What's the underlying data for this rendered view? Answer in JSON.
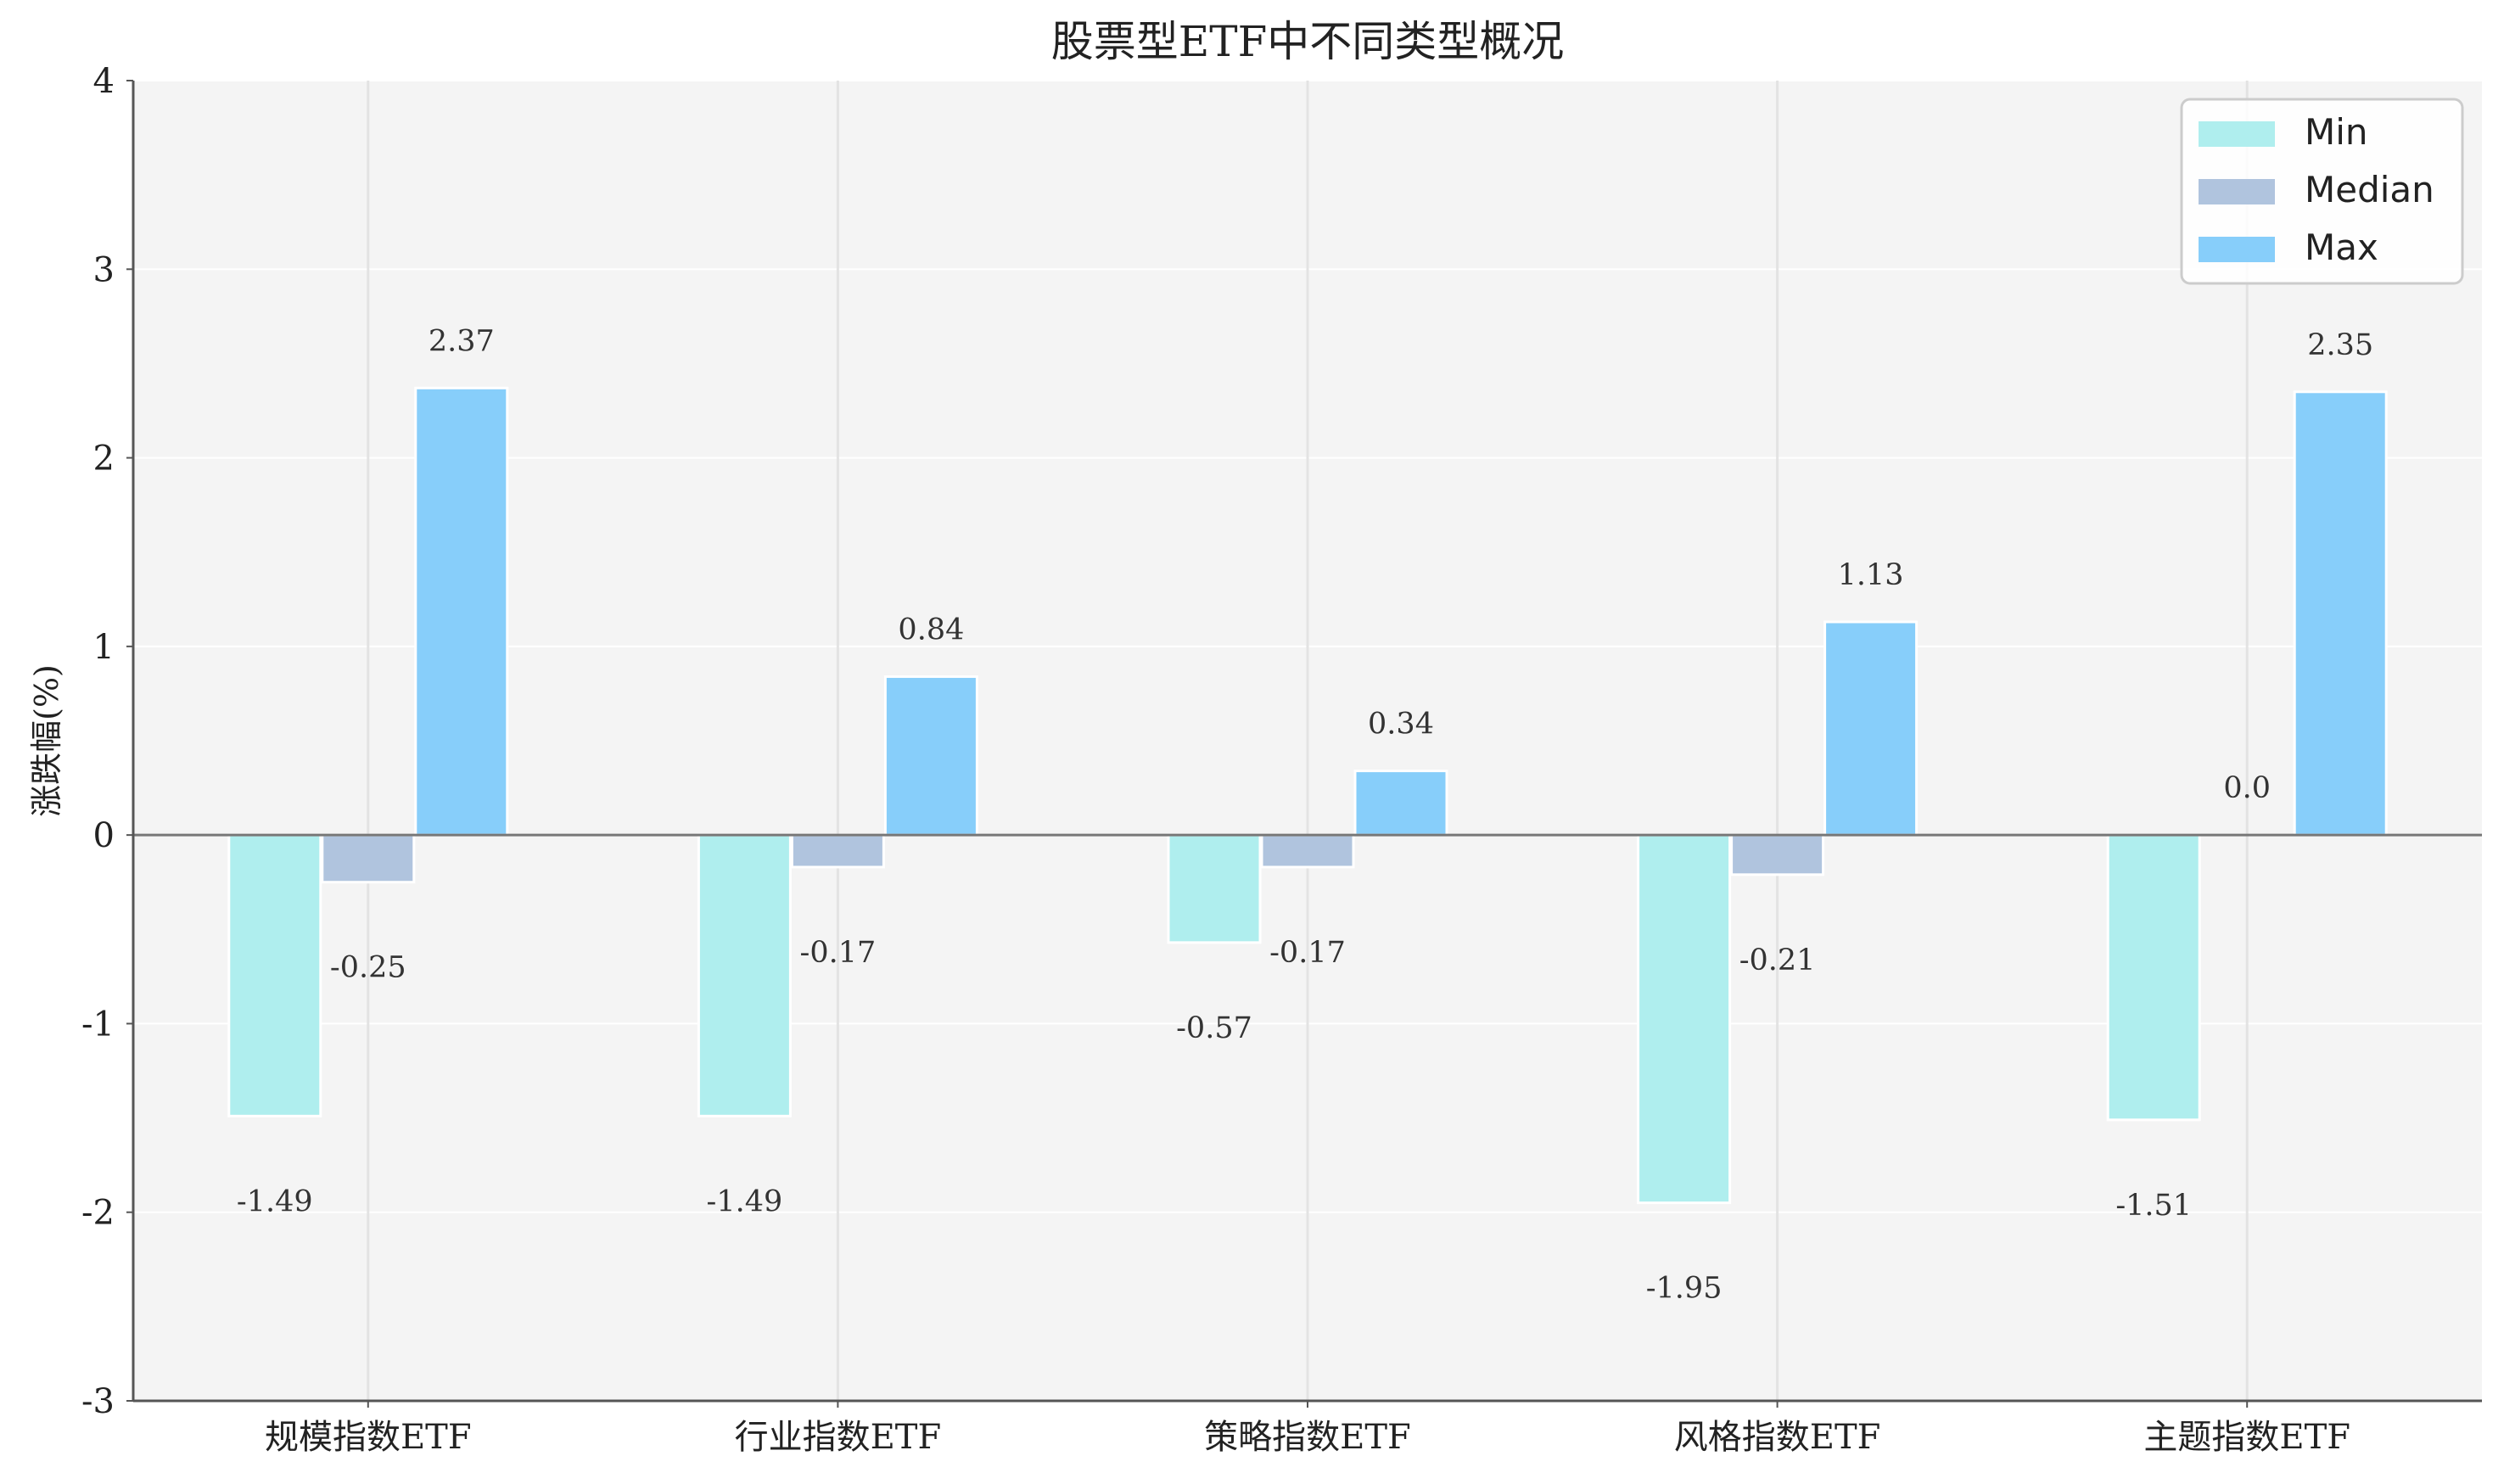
{
  "chart_data": {
    "type": "bar",
    "title": "股票型ETF中不同类型概况",
    "xlabel": "",
    "ylabel": "涨跌幅(%)",
    "ylim": [
      -3,
      4
    ],
    "yticks": [
      -3,
      -2,
      -1,
      0,
      1,
      2,
      3,
      4
    ],
    "ytick_labels": [
      "-3",
      "-2",
      "-1",
      "0",
      "1",
      "2",
      "3",
      "4"
    ],
    "categories": [
      "规模指数ETF",
      "行业指数ETF",
      "策略指数ETF",
      "风格指数ETF",
      "主题指数ETF"
    ],
    "series": [
      {
        "name": "Min",
        "color": "#AFEEEE",
        "values": [
          -1.49,
          -1.49,
          -0.57,
          -1.95,
          -1.51
        ],
        "labels": [
          "-1.49",
          "-1.49",
          "-0.57",
          "-1.95",
          "-1.51"
        ]
      },
      {
        "name": "Median",
        "color": "#B0C4DE",
        "values": [
          -0.25,
          -0.17,
          -0.17,
          -0.21,
          0.0
        ],
        "labels": [
          "-0.25",
          "-0.17",
          "-0.17",
          "-0.21",
          "0.0"
        ]
      },
      {
        "name": "Max",
        "color": "#87CEFA",
        "values": [
          2.37,
          0.84,
          0.34,
          1.13,
          2.35
        ],
        "labels": [
          "2.37",
          "0.84",
          "0.34",
          "1.13",
          "2.35"
        ]
      }
    ],
    "grid": true,
    "legend_position": "top-right",
    "background": "#F4F4F4"
  }
}
